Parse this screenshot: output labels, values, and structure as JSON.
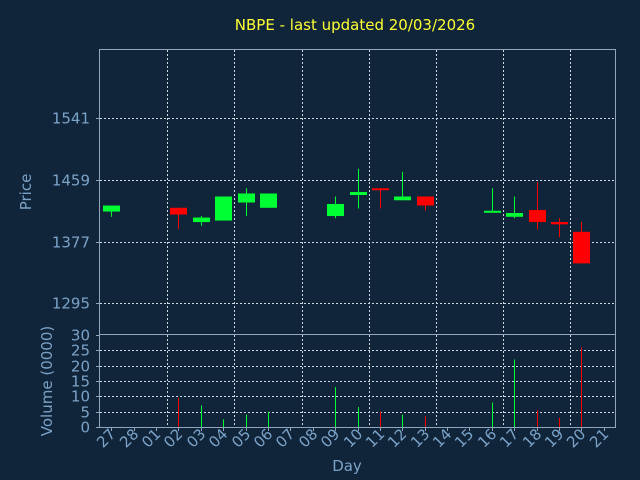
{
  "chart_data": [
    {
      "type": "candlestick",
      "title": "NBPE - last updated 20/03/2026",
      "ylabel": "Price",
      "ylim": [
        1254,
        1632
      ],
      "yticks": [
        1295,
        1377,
        1459,
        1541
      ],
      "grid": true,
      "colors": {
        "up": "#00ff33",
        "down": "#ff0000"
      },
      "candles": [
        {
          "day": "27",
          "open": 1417,
          "high": 1425,
          "low": 1410,
          "close": 1425
        },
        {
          "day": "02",
          "open": 1422,
          "high": 1422,
          "low": 1394,
          "close": 1413
        },
        {
          "day": "03",
          "open": 1403,
          "high": 1411,
          "low": 1398,
          "close": 1409
        },
        {
          "day": "04",
          "open": 1405,
          "high": 1437,
          "low": 1405,
          "close": 1437
        },
        {
          "day": "05",
          "open": 1429,
          "high": 1448,
          "low": 1411,
          "close": 1441
        },
        {
          "day": "06",
          "open": 1422,
          "high": 1441,
          "low": 1422,
          "close": 1441
        },
        {
          "day": "09",
          "open": 1411,
          "high": 1437,
          "low": 1408,
          "close": 1427
        },
        {
          "day": "10",
          "open": 1439,
          "high": 1474,
          "low": 1421,
          "close": 1443
        },
        {
          "day": "11",
          "open": 1448,
          "high": 1448,
          "low": 1421,
          "close": 1446
        },
        {
          "day": "12",
          "open": 1432,
          "high": 1470,
          "low": 1432,
          "close": 1437
        },
        {
          "day": "13",
          "open": 1437,
          "high": 1437,
          "low": 1418,
          "close": 1425
        },
        {
          "day": "16",
          "open": 1417,
          "high": 1448,
          "low": 1417,
          "close": 1418
        },
        {
          "day": "17",
          "open": 1410,
          "high": 1437,
          "low": 1408,
          "close": 1415
        },
        {
          "day": "18",
          "open": 1419,
          "high": 1456,
          "low": 1393,
          "close": 1403
        },
        {
          "day": "19",
          "open": 1403,
          "high": 1408,
          "low": 1383,
          "close": 1400
        },
        {
          "day": "20",
          "open": 1390,
          "high": 1403,
          "low": 1348,
          "close": 1348
        }
      ]
    },
    {
      "type": "bar",
      "ylabel": "Volume (0000)",
      "xlabel": "Day",
      "ylim": [
        0,
        30
      ],
      "yticks": [
        0,
        5,
        10,
        15,
        20,
        25,
        30
      ],
      "categories": [
        "27",
        "28",
        "01",
        "02",
        "03",
        "04",
        "05",
        "06",
        "07",
        "08",
        "09",
        "10",
        "11",
        "12",
        "13",
        "14",
        "15",
        "16",
        "17",
        "18",
        "19",
        "20",
        "21"
      ],
      "volumes": [
        {
          "day": "02",
          "value": 9.5
        },
        {
          "day": "03",
          "value": 7
        },
        {
          "day": "04",
          "value": 2.5
        },
        {
          "day": "05",
          "value": 4
        },
        {
          "day": "06",
          "value": 5
        },
        {
          "day": "09",
          "value": 13
        },
        {
          "day": "10",
          "value": 6.5
        },
        {
          "day": "11",
          "value": 5
        },
        {
          "day": "12",
          "value": 4
        },
        {
          "day": "13",
          "value": 3.5
        },
        {
          "day": "16",
          "value": 8
        },
        {
          "day": "17",
          "value": 22
        },
        {
          "day": "18",
          "value": 5.5
        },
        {
          "day": "19",
          "value": 3
        },
        {
          "day": "20",
          "value": 26
        }
      ]
    }
  ]
}
